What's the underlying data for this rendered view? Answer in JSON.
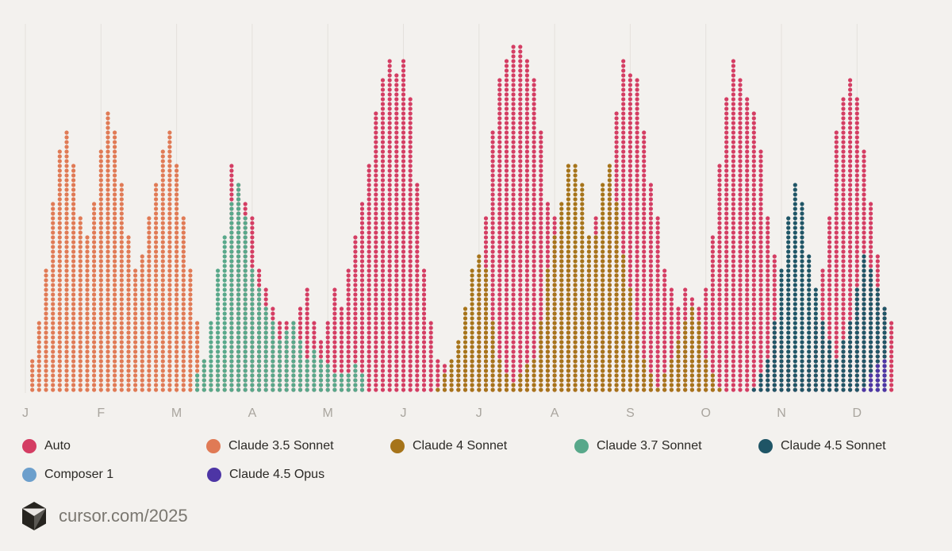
{
  "chart_data": {
    "type": "scatter",
    "months": [
      "J",
      "F",
      "M",
      "A",
      "M",
      "J",
      "J",
      "A",
      "S",
      "O",
      "N",
      "D"
    ],
    "series": [
      {
        "name": "Auto",
        "color": "#d43d63",
        "points": [
          [
            6.0,
            0.65
          ],
          [
            6.2,
            0.6
          ],
          [
            6.4,
            0.55
          ],
          [
            6.6,
            0.5
          ],
          [
            6.8,
            0.35
          ],
          [
            7.0,
            0.3
          ],
          [
            7.2,
            0.25
          ],
          [
            7.4,
            0.2
          ],
          [
            7.6,
            0.2
          ],
          [
            7.8,
            0.2
          ],
          [
            8.0,
            0.25
          ],
          [
            8.2,
            0.3
          ],
          [
            8.4,
            0.2
          ],
          [
            8.6,
            0.15
          ],
          [
            8.8,
            0.2
          ],
          [
            9.0,
            0.3
          ],
          [
            9.2,
            0.25
          ],
          [
            9.4,
            0.35
          ],
          [
            9.6,
            0.45
          ],
          [
            9.8,
            0.55
          ],
          [
            10.0,
            0.65
          ],
          [
            10.2,
            0.8
          ],
          [
            10.4,
            0.9
          ],
          [
            10.6,
            0.95
          ],
          [
            10.8,
            0.92
          ],
          [
            11.0,
            0.95
          ],
          [
            11.2,
            0.85
          ],
          [
            11.4,
            0.6
          ],
          [
            11.6,
            0.35
          ],
          [
            11.8,
            0.2
          ],
          [
            12.0,
            0.1
          ],
          [
            12.2,
            0.08
          ],
          [
            12.4,
            0.05
          ],
          [
            12.6,
            0.08
          ],
          [
            12.8,
            0.1
          ],
          [
            13.0,
            0.15
          ],
          [
            13.2,
            0.3
          ],
          [
            13.4,
            0.5
          ],
          [
            13.6,
            0.75
          ],
          [
            13.8,
            0.9
          ],
          [
            14.0,
            0.95
          ],
          [
            14.2,
            1.0
          ],
          [
            14.4,
            1.0
          ],
          [
            14.6,
            0.95
          ],
          [
            14.8,
            0.9
          ],
          [
            15.0,
            0.75
          ],
          [
            15.2,
            0.55
          ],
          [
            15.4,
            0.5
          ],
          [
            15.6,
            0.45
          ],
          [
            15.8,
            0.4
          ],
          [
            16.0,
            0.35
          ],
          [
            16.2,
            0.3
          ],
          [
            16.4,
            0.35
          ],
          [
            16.6,
            0.5
          ],
          [
            16.8,
            0.4
          ],
          [
            17.0,
            0.6
          ],
          [
            17.2,
            0.8
          ],
          [
            17.4,
            0.95
          ],
          [
            17.6,
            0.92
          ],
          [
            17.8,
            0.9
          ],
          [
            18.0,
            0.75
          ],
          [
            18.2,
            0.6
          ],
          [
            18.4,
            0.5
          ],
          [
            18.6,
            0.35
          ],
          [
            18.8,
            0.3
          ],
          [
            19.0,
            0.25
          ],
          [
            19.2,
            0.3
          ],
          [
            19.4,
            0.28
          ],
          [
            19.6,
            0.25
          ],
          [
            19.8,
            0.3
          ],
          [
            20.0,
            0.45
          ],
          [
            20.2,
            0.65
          ],
          [
            20.4,
            0.85
          ],
          [
            20.6,
            0.95
          ],
          [
            20.8,
            0.9
          ],
          [
            21.0,
            0.85
          ],
          [
            21.2,
            0.8
          ],
          [
            21.4,
            0.7
          ],
          [
            21.6,
            0.5
          ],
          [
            21.8,
            0.4
          ],
          [
            22.0,
            0.15
          ],
          [
            22.2,
            0.1
          ],
          [
            22.4,
            0.05
          ],
          [
            22.6,
            0.05
          ],
          [
            22.8,
            0.1
          ],
          [
            23.0,
            0.2
          ],
          [
            23.2,
            0.35
          ],
          [
            23.4,
            0.5
          ],
          [
            23.6,
            0.75
          ],
          [
            23.8,
            0.85
          ],
          [
            24.0,
            0.9
          ],
          [
            24.2,
            0.85
          ],
          [
            24.4,
            0.7
          ],
          [
            24.6,
            0.55
          ],
          [
            24.8,
            0.4
          ],
          [
            25.0,
            0.25
          ],
          [
            25.2,
            0.2
          ]
        ]
      },
      {
        "name": "Claude 3.5 Sonnet",
        "color": "#e07a55",
        "points": [
          [
            0.2,
            0.1
          ],
          [
            0.4,
            0.2
          ],
          [
            0.6,
            0.35
          ],
          [
            0.8,
            0.55
          ],
          [
            1.0,
            0.7
          ],
          [
            1.2,
            0.75
          ],
          [
            1.4,
            0.65
          ],
          [
            1.6,
            0.5
          ],
          [
            1.8,
            0.45
          ],
          [
            2.0,
            0.55
          ],
          [
            2.2,
            0.7
          ],
          [
            2.4,
            0.8
          ],
          [
            2.6,
            0.75
          ],
          [
            2.8,
            0.6
          ],
          [
            3.0,
            0.45
          ],
          [
            3.2,
            0.35
          ],
          [
            3.4,
            0.4
          ],
          [
            3.6,
            0.5
          ],
          [
            3.8,
            0.6
          ],
          [
            4.0,
            0.7
          ],
          [
            4.2,
            0.75
          ],
          [
            4.4,
            0.65
          ],
          [
            4.6,
            0.5
          ],
          [
            4.8,
            0.35
          ],
          [
            5.0,
            0.2
          ],
          [
            5.2,
            0.1
          ],
          [
            5.4,
            0.05
          ],
          [
            5.6,
            0.08
          ],
          [
            5.8,
            0.1
          ]
        ]
      },
      {
        "name": "Claude 4 Sonnet",
        "color": "#a6741a",
        "points": [
          [
            12.0,
            0.02
          ],
          [
            12.2,
            0.05
          ],
          [
            12.4,
            0.1
          ],
          [
            12.6,
            0.15
          ],
          [
            12.8,
            0.25
          ],
          [
            13.0,
            0.35
          ],
          [
            13.2,
            0.4
          ],
          [
            13.4,
            0.35
          ],
          [
            13.6,
            0.2
          ],
          [
            13.8,
            0.1
          ],
          [
            14.0,
            0.05
          ],
          [
            14.2,
            0.03
          ],
          [
            14.4,
            0.05
          ],
          [
            14.6,
            0.08
          ],
          [
            14.8,
            0.1
          ],
          [
            15.0,
            0.2
          ],
          [
            15.2,
            0.35
          ],
          [
            15.4,
            0.45
          ],
          [
            15.6,
            0.55
          ],
          [
            15.8,
            0.65
          ],
          [
            16.0,
            0.65
          ],
          [
            16.2,
            0.6
          ],
          [
            16.4,
            0.45
          ],
          [
            16.6,
            0.45
          ],
          [
            16.8,
            0.6
          ],
          [
            17.0,
            0.65
          ],
          [
            17.2,
            0.55
          ],
          [
            17.4,
            0.4
          ],
          [
            17.6,
            0.3
          ],
          [
            17.8,
            0.2
          ],
          [
            18.0,
            0.1
          ],
          [
            18.2,
            0.05
          ],
          [
            18.4,
            0.02
          ],
          [
            18.6,
            0.05
          ],
          [
            18.8,
            0.1
          ],
          [
            19.0,
            0.15
          ],
          [
            19.2,
            0.2
          ],
          [
            19.4,
            0.25
          ],
          [
            19.6,
            0.2
          ],
          [
            19.8,
            0.1
          ],
          [
            20.0,
            0.05
          ],
          [
            20.2,
            0.02
          ]
        ]
      },
      {
        "name": "Claude 3.7 Sonnet",
        "color": "#58a88a",
        "points": [
          [
            5.0,
            0.05
          ],
          [
            5.2,
            0.1
          ],
          [
            5.4,
            0.2
          ],
          [
            5.6,
            0.35
          ],
          [
            5.8,
            0.45
          ],
          [
            6.0,
            0.55
          ],
          [
            6.2,
            0.6
          ],
          [
            6.4,
            0.5
          ],
          [
            6.6,
            0.35
          ],
          [
            6.8,
            0.3
          ],
          [
            7.0,
            0.25
          ],
          [
            7.2,
            0.2
          ],
          [
            7.4,
            0.15
          ],
          [
            7.6,
            0.18
          ],
          [
            7.8,
            0.2
          ],
          [
            8.0,
            0.15
          ],
          [
            8.2,
            0.1
          ],
          [
            8.4,
            0.12
          ],
          [
            8.6,
            0.1
          ],
          [
            8.8,
            0.08
          ],
          [
            9.0,
            0.06
          ],
          [
            9.2,
            0.05
          ],
          [
            9.4,
            0.06
          ],
          [
            9.6,
            0.08
          ],
          [
            9.8,
            0.05
          ]
        ]
      },
      {
        "name": "Claude 4.5 Sonnet",
        "color": "#1f5566",
        "points": [
          [
            21.2,
            0.02
          ],
          [
            21.4,
            0.05
          ],
          [
            21.6,
            0.1
          ],
          [
            21.8,
            0.2
          ],
          [
            22.0,
            0.35
          ],
          [
            22.2,
            0.5
          ],
          [
            22.4,
            0.6
          ],
          [
            22.6,
            0.55
          ],
          [
            22.8,
            0.4
          ],
          [
            23.0,
            0.3
          ],
          [
            23.2,
            0.2
          ],
          [
            23.4,
            0.15
          ],
          [
            23.6,
            0.1
          ],
          [
            23.8,
            0.15
          ],
          [
            24.0,
            0.2
          ],
          [
            24.2,
            0.3
          ],
          [
            24.4,
            0.4
          ],
          [
            24.6,
            0.35
          ],
          [
            24.8,
            0.3
          ],
          [
            25.0,
            0.25
          ]
        ]
      },
      {
        "name": "Composer 1",
        "color": "#6c9fcc",
        "points": [
          [
            24.6,
            0.02
          ],
          [
            24.8,
            0.03
          ],
          [
            25.0,
            0.04
          ]
        ]
      },
      {
        "name": "Claude 4.5 Opus",
        "color": "#4d35a5",
        "points": [
          [
            24.4,
            0.02
          ],
          [
            24.6,
            0.05
          ],
          [
            24.8,
            0.08
          ],
          [
            25.0,
            0.1
          ]
        ]
      }
    ]
  },
  "footer": {
    "url": "cursor.com/2025"
  }
}
